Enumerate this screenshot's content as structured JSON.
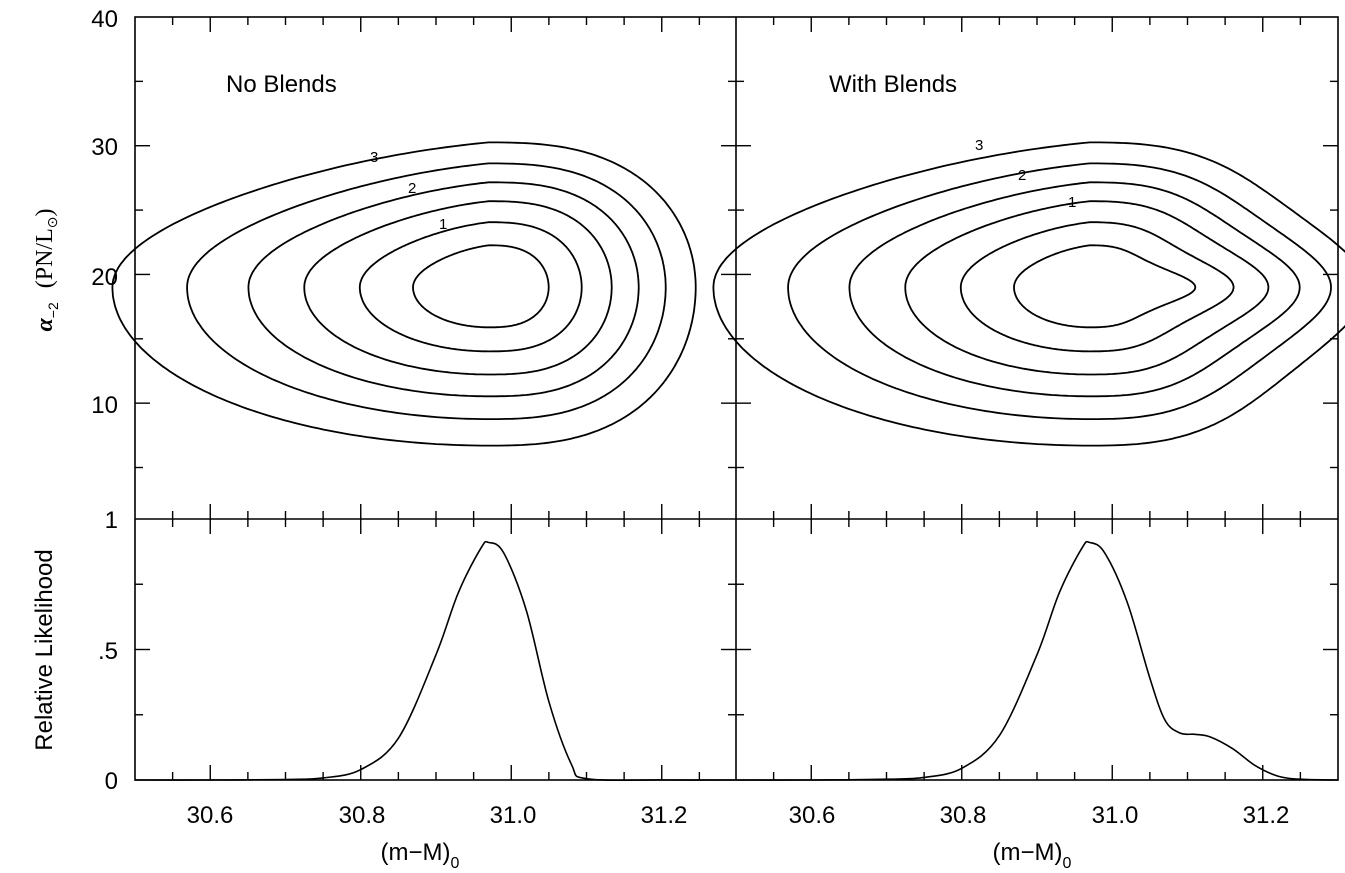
{
  "chart_data": [
    {
      "panel": "top-left",
      "type": "contour",
      "title": "No Blends",
      "ylabel_symbol": "α",
      "ylabel_sub": "−2",
      "ylabel_unit": "(PN/L",
      "ylabel_sun": "⊙",
      "ylabel_close": ")",
      "xlim": [
        30.5,
        31.3
      ],
      "ylim": [
        1,
        40
      ],
      "y_tick_labels": [
        "40",
        "30",
        "20",
        "10"
      ],
      "y_ticks": [
        40,
        30,
        20,
        10
      ],
      "contour_labels": [
        "3",
        "2",
        "1"
      ],
      "peak": {
        "x": 30.97,
        "y": 19
      }
    },
    {
      "panel": "top-right",
      "type": "contour",
      "title": "With Blends",
      "xlim": [
        30.5,
        31.3
      ],
      "ylim": [
        1,
        40
      ],
      "contour_labels": [
        "3",
        "2",
        "1"
      ],
      "peak": {
        "x": 30.97,
        "y": 19
      }
    },
    {
      "panel": "bottom-left",
      "type": "line",
      "ylabel": "Relative Likelihood",
      "xlabel_main": "(m−M)",
      "xlabel_sub": "0",
      "xlim": [
        30.5,
        31.3
      ],
      "ylim": [
        0,
        1
      ],
      "x_ticks": [
        30.6,
        30.8,
        31.0,
        31.2
      ],
      "x_tick_labels": [
        "30.6",
        "30.8",
        "31.0",
        "31.2"
      ],
      "y_ticks": [
        1,
        0.5,
        0
      ],
      "y_tick_labels": [
        "1",
        ".5",
        "0"
      ],
      "x": [
        30.5,
        30.6,
        30.7,
        30.75,
        30.8,
        30.85,
        30.9,
        30.93,
        30.96,
        30.97,
        30.99,
        31.02,
        31.05,
        31.08,
        31.1,
        31.2,
        31.3
      ],
      "y": [
        0,
        0,
        0.002,
        0.008,
        0.04,
        0.16,
        0.48,
        0.72,
        0.89,
        0.91,
        0.87,
        0.65,
        0.3,
        0.06,
        0.005,
        0,
        0
      ]
    },
    {
      "panel": "bottom-right",
      "type": "line",
      "xlabel_main": "(m−M)",
      "xlabel_sub": "0",
      "xlim": [
        30.5,
        31.3
      ],
      "ylim": [
        0,
        1
      ],
      "x_tick_labels": [
        "30.6",
        "30.8",
        "31.0",
        "31.2"
      ],
      "x": [
        30.5,
        30.6,
        30.7,
        30.75,
        30.8,
        30.85,
        30.9,
        30.93,
        30.96,
        30.97,
        30.99,
        31.02,
        31.05,
        31.07,
        31.09,
        31.11,
        31.13,
        31.16,
        31.19,
        31.22,
        31.25,
        31.3
      ],
      "y": [
        0,
        0,
        0.003,
        0.01,
        0.045,
        0.17,
        0.48,
        0.72,
        0.89,
        0.91,
        0.87,
        0.68,
        0.39,
        0.23,
        0.18,
        0.175,
        0.165,
        0.12,
        0.055,
        0.015,
        0.003,
        0
      ]
    }
  ]
}
